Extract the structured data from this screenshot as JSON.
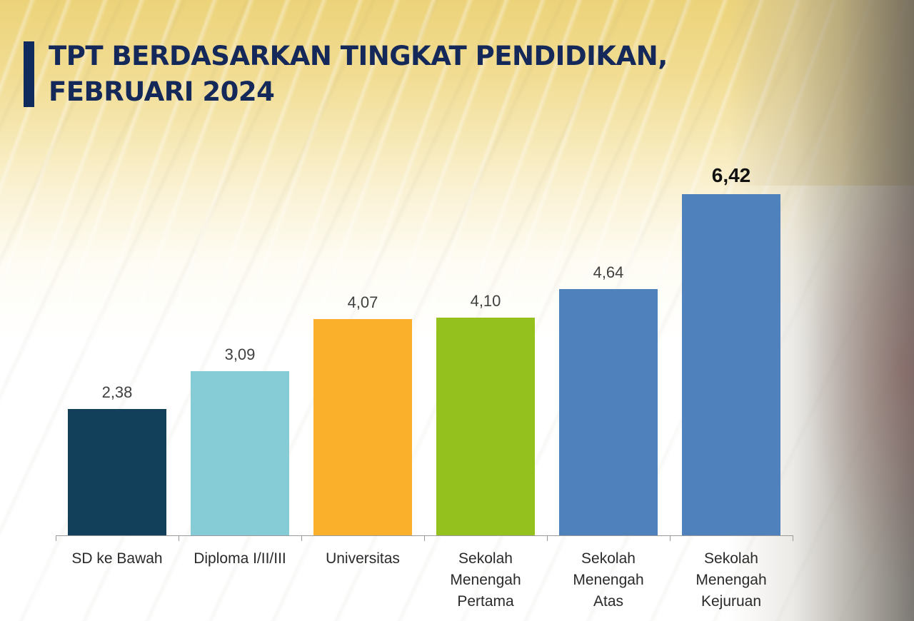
{
  "title": {
    "line1": "TPT BERDASARKAN TINGKAT PENDIDIKAN,",
    "line2": "FEBRUARI 2024",
    "accent_color": "#0f2a5c"
  },
  "chart_data": {
    "type": "bar",
    "title": "TPT BERDASARKAN TINGKAT PENDIDIKAN, FEBRUARI 2024",
    "xlabel": "",
    "ylabel": "",
    "ylim": [
      0,
      6.42
    ],
    "grid": false,
    "legend": null,
    "categories": [
      "SD ke Bawah",
      "Diploma I/II/III",
      "Universitas",
      "Sekolah Menengah Pertama",
      "Sekolah Menengah Atas",
      "Sekolah Menengah Kejuruan"
    ],
    "values": [
      2.38,
      3.09,
      4.07,
      4.1,
      4.64,
      6.42
    ],
    "value_labels": [
      "2,38",
      "3,09",
      "4,07",
      "4,10",
      "4,64",
      "6,42"
    ],
    "colors": [
      "#12405a",
      "#86ccd6",
      "#fbb02b",
      "#95c11f",
      "#4f81bd",
      "#4f81bd"
    ],
    "highlighted": "Sekolah Menengah Kejuruan"
  },
  "categories_display": [
    [
      "SD ke Bawah"
    ],
    [
      "Diploma I/II/III"
    ],
    [
      "Universitas"
    ],
    [
      "Sekolah",
      "Menengah",
      "Pertama"
    ],
    [
      "Sekolah",
      "Menengah",
      "Atas"
    ],
    [
      "Sekolah",
      "Menengah",
      "Kejuruan"
    ]
  ]
}
